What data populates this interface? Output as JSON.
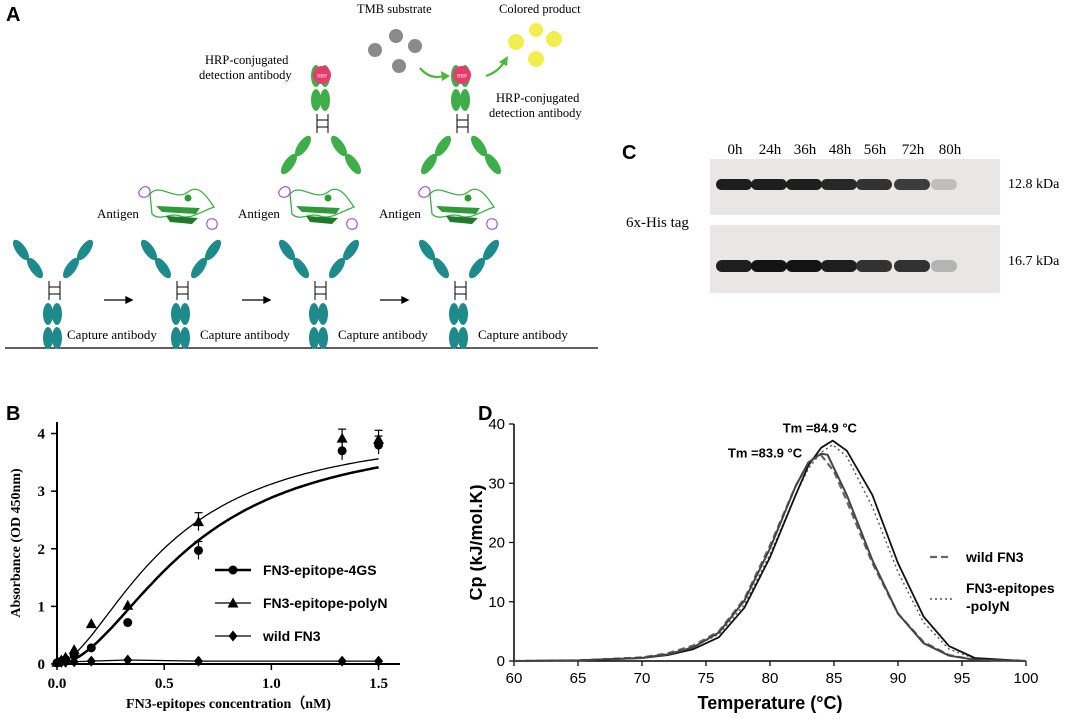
{
  "panels": {
    "a": "A",
    "b": "B",
    "c": "C",
    "d": "D"
  },
  "panel_a": {
    "capture_label": "Capture antibody",
    "antigen_label": "Antigen",
    "hrp_label_1": "HRP-conjugated",
    "hrp_label_2": "detection antibody",
    "hrp_badge": "HRP",
    "tmb_label": "TMB substrate",
    "colored_label": "Colored product",
    "colors": {
      "capture": "#1e8a8c",
      "detection": "#3fae4a",
      "hrp": "#e63c6c",
      "substrate": "#8a8a8a",
      "product": "#f2ee50",
      "arrow": "#4cb83a"
    }
  },
  "panel_c": {
    "timepoints": [
      "0h",
      "24h",
      "36h",
      "48h",
      "56h",
      "72h",
      "80h"
    ],
    "row_label": "6x-His tag",
    "rows": [
      {
        "size": "12.8 kDa",
        "intensity": [
          0.95,
          0.95,
          0.95,
          0.9,
          0.85,
          0.8,
          0.15
        ]
      },
      {
        "size": "16.7 kDa",
        "intensity": [
          0.95,
          1.0,
          1.0,
          0.95,
          0.85,
          0.85,
          0.2
        ]
      }
    ]
  },
  "chart_data": [
    {
      "type": "line",
      "panel": "B",
      "xlabel": "FN3-epitopes concentration（nM)",
      "ylabel": "Absorbance (OD 450nm)",
      "xlim": [
        0.0,
        1.6
      ],
      "ylim": [
        0,
        4.2
      ],
      "xticks": [
        "0.0",
        "0.5",
        "1.0",
        "1.5"
      ],
      "yticks": [
        "0",
        "1",
        "2",
        "3",
        "4"
      ],
      "legend_position": "center-right",
      "series": [
        {
          "name": "FN3-epitope-4GS",
          "marker": "circle",
          "x": [
            0.0,
            0.02,
            0.04,
            0.08,
            0.16,
            0.33,
            0.66,
            1.33,
            1.5
          ],
          "y": [
            0.02,
            0.05,
            0.08,
            0.15,
            0.28,
            0.72,
            1.97,
            3.7,
            3.8
          ]
        },
        {
          "name": "FN3-epitope-polyN",
          "marker": "triangle",
          "x": [
            0.0,
            0.02,
            0.04,
            0.08,
            0.16,
            0.33,
            0.66,
            1.33,
            1.5
          ],
          "y": [
            0.03,
            0.07,
            0.12,
            0.25,
            0.7,
            1.02,
            2.47,
            3.92,
            3.9
          ]
        },
        {
          "name": "wild FN3",
          "marker": "diamond",
          "x": [
            0.0,
            0.02,
            0.04,
            0.08,
            0.16,
            0.33,
            0.66,
            1.33,
            1.5
          ],
          "y": [
            0.02,
            0.03,
            0.03,
            0.04,
            0.05,
            0.07,
            0.05,
            0.05,
            0.05
          ]
        }
      ]
    },
    {
      "type": "line",
      "panel": "D",
      "xlabel": "Temperature (°C)",
      "ylabel": "Cp (kJ/mol.K)",
      "xlim": [
        60,
        100
      ],
      "ylim": [
        0,
        40
      ],
      "xticks": [
        "60",
        "65",
        "70",
        "75",
        "80",
        "85",
        "90",
        "95",
        "100"
      ],
      "yticks": [
        "0",
        "10",
        "20",
        "30",
        "40"
      ],
      "legend_position": "right",
      "annotations": [
        "Tm =84.9 °C",
        "Tm =83.9 °C"
      ],
      "series": [
        {
          "name": "wild FN3",
          "style": "dashed",
          "x": [
            60,
            65,
            70,
            72,
            74,
            76,
            78,
            80,
            82,
            83,
            83.9,
            85,
            86,
            88,
            90,
            92,
            94,
            96,
            100
          ],
          "y": [
            0,
            0.1,
            0.6,
            1.3,
            2.6,
            5.0,
            10.5,
            19.5,
            29.5,
            33.5,
            35.0,
            32.0,
            27.0,
            16.5,
            8.0,
            3.2,
            1.0,
            0.2,
            0
          ]
        },
        {
          "name": "FN3-epitopes\n-polyN",
          "style": "dotted",
          "x": [
            60,
            65,
            70,
            72,
            74,
            76,
            78,
            80,
            82,
            83,
            84,
            84.9,
            86,
            88,
            90,
            92,
            94,
            96,
            100
          ],
          "y": [
            0,
            0.1,
            0.6,
            1.2,
            2.4,
            4.5,
            9.5,
            18.0,
            28.0,
            32.5,
            35.2,
            36.5,
            34.5,
            26.0,
            15.0,
            6.5,
            2.0,
            0.4,
            0
          ]
        },
        {
          "name": "",
          "style": "solid",
          "x": [
            60,
            65,
            70,
            72,
            74,
            76,
            78,
            80,
            82,
            83,
            84,
            84.9,
            86,
            88,
            90,
            92,
            94,
            96,
            100
          ],
          "y": [
            0,
            0.1,
            0.5,
            1.0,
            2.0,
            4.0,
            9.0,
            17.5,
            28.0,
            33.0,
            36.0,
            37.2,
            35.5,
            28.0,
            16.5,
            7.5,
            2.5,
            0.5,
            0
          ]
        },
        {
          "name": "",
          "style": "solid-gray",
          "x": [
            60,
            65,
            70,
            72,
            74,
            76,
            78,
            80,
            82,
            83,
            84,
            84.5,
            86,
            88,
            90,
            92,
            94,
            96,
            100
          ],
          "y": [
            0,
            0.1,
            0.5,
            1.1,
            2.3,
            4.8,
            10.2,
            19.0,
            29.5,
            33.5,
            35.0,
            34.8,
            28.0,
            17.0,
            8.0,
            3.0,
            0.9,
            0.2,
            0
          ]
        }
      ]
    }
  ]
}
